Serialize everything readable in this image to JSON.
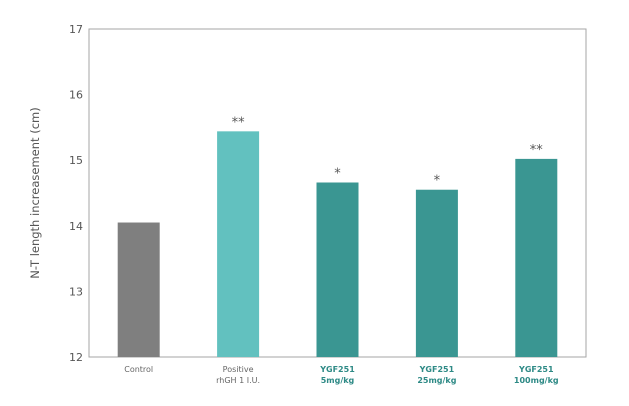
{
  "chart_data": {
    "type": "bar",
    "ylabel": "N-T length increasement (cm)",
    "xlabel": "",
    "ylim": [
      12,
      17
    ],
    "yticks": [
      12,
      13,
      14,
      15,
      16,
      17
    ],
    "grid": false,
    "categories": [
      {
        "lines": [
          "Control"
        ],
        "emphasis": false
      },
      {
        "lines": [
          "Positive",
          "rhGH 1 I.U."
        ],
        "emphasis": false
      },
      {
        "lines": [
          "YGF251",
          "5mg/kg"
        ],
        "emphasis": true
      },
      {
        "lines": [
          "YGF251",
          "25mg/kg"
        ],
        "emphasis": true
      },
      {
        "lines": [
          "YGF251",
          "100mg/kg"
        ],
        "emphasis": true
      }
    ],
    "values": [
      14.05,
      15.44,
      14.66,
      14.55,
      15.02
    ],
    "annotations": [
      "",
      "**",
      "*",
      "*",
      "**"
    ],
    "colors": [
      "#7f7f7f",
      "#62c1bf",
      "#3a9692",
      "#3a9692",
      "#3a9692"
    ]
  }
}
